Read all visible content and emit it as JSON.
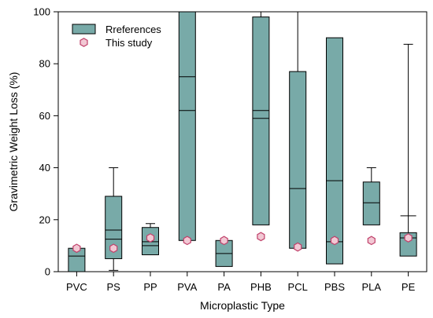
{
  "chart_data": {
    "type": "box",
    "xlabel": "Microplastic Type",
    "ylabel": "Gravimetric Weight Loss (%)",
    "ylim": [
      0,
      100
    ],
    "yticks": [
      0,
      20,
      40,
      60,
      80,
      100
    ],
    "categories": [
      "PVC",
      "PS",
      "PP",
      "PVA",
      "PA",
      "PHB",
      "PCL",
      "PBS",
      "PLA",
      "PE"
    ],
    "legend": {
      "placement": "top-left",
      "entries": [
        {
          "label": "Rreferences",
          "marker": "box"
        },
        {
          "label": "This study",
          "marker": "hexagon"
        }
      ]
    },
    "colors": {
      "box_fill": "#78aaa8",
      "box_stroke": "#000000",
      "marker_fill": "#f2c8d4",
      "marker_stroke": "#c0406a"
    },
    "series": [
      {
        "name": "Rreferences",
        "kind": "box",
        "boxes": [
          {
            "category": "PVC",
            "min": 0,
            "q1": 0,
            "median": 6,
            "q3": 9,
            "max": 9
          },
          {
            "category": "PS",
            "min": 0.5,
            "q1": 5,
            "median": 12.5,
            "mean": 16,
            "q3": 29,
            "max": 40
          },
          {
            "category": "PP",
            "min": 6.5,
            "q1": 6.5,
            "median": 10,
            "mean": 11.5,
            "q3": 17,
            "max": 18.5
          },
          {
            "category": "PVA",
            "min": 12,
            "q1": 12,
            "median": 62,
            "mean": 75,
            "q3": 100,
            "max": 100
          },
          {
            "category": "PA",
            "min": 2,
            "q1": 2,
            "median": 7,
            "q3": 12,
            "max": 12
          },
          {
            "category": "PHB",
            "min": 18,
            "q1": 18,
            "median": 59,
            "mean": 62,
            "q3": 98,
            "max": 100
          },
          {
            "category": "PCL",
            "min": 9,
            "q1": 9,
            "median": 32,
            "q3": 77,
            "max": 100
          },
          {
            "category": "PBS",
            "min": 3,
            "q1": 3,
            "median": 11.5,
            "mean": 35,
            "q3": 90,
            "max": 90
          },
          {
            "category": "PLA",
            "min": 18,
            "q1": 18,
            "median": 26.5,
            "q3": 34.5,
            "max": 40
          },
          {
            "category": "PE",
            "min": 6,
            "q1": 6,
            "median": 13,
            "q3": 15,
            "max": 87.5,
            "p90": 21.5
          }
        ]
      },
      {
        "name": "This study",
        "kind": "scatter",
        "points": [
          {
            "category": "PVC",
            "value": 9
          },
          {
            "category": "PS",
            "value": 9
          },
          {
            "category": "PP",
            "value": 13
          },
          {
            "category": "PVA",
            "value": 12
          },
          {
            "category": "PA",
            "value": 12
          },
          {
            "category": "PHB",
            "value": 13.5
          },
          {
            "category": "PCL",
            "value": 9.5
          },
          {
            "category": "PBS",
            "value": 12
          },
          {
            "category": "PLA",
            "value": 12
          },
          {
            "category": "PE",
            "value": 13
          }
        ]
      }
    ]
  }
}
